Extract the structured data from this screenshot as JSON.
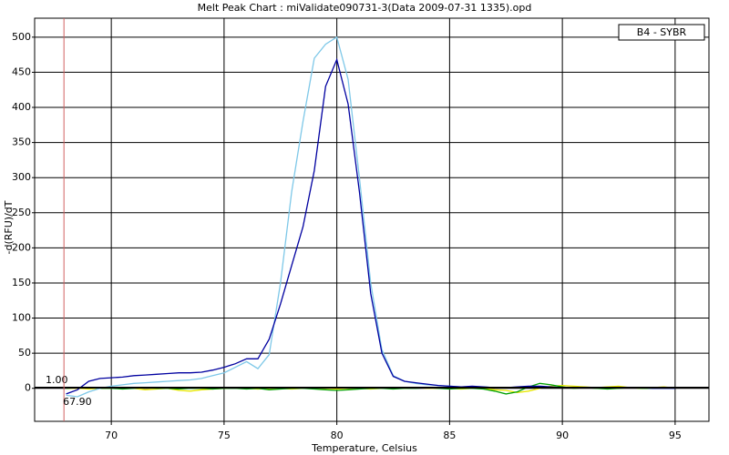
{
  "chart_data": {
    "type": "line",
    "title": "Melt Peak Chart : miValidate090731-3(Data 2009-07-31 1335).opd",
    "x_label": "Temperature, Celsius",
    "y_label": "-d(RFU)/dT",
    "x": [
      68,
      68.5,
      69,
      69.5,
      70,
      70.5,
      71,
      71.5,
      72,
      72.5,
      73,
      73.5,
      74,
      74.5,
      75,
      75.5,
      76,
      76.5,
      77,
      77.5,
      78,
      78.5,
      79,
      79.5,
      80,
      80.5,
      81,
      81.5,
      82,
      82.5,
      83,
      83.5,
      84,
      84.5,
      85,
      85.5,
      86,
      86.5,
      87,
      87.5,
      88,
      88.5,
      89,
      89.5,
      90,
      90.5,
      91,
      91.5,
      92,
      92.5,
      93,
      93.5,
      94,
      94.5,
      95
    ],
    "series": [
      {
        "name": "B4 - SYBR",
        "color": "#0000a0",
        "values": [
          -8,
          -2,
          10,
          14,
          15,
          16,
          18,
          19,
          20,
          21,
          22,
          22,
          23,
          26,
          30,
          35,
          42,
          42,
          70,
          120,
          175,
          230,
          310,
          430,
          468,
          405,
          280,
          135,
          50,
          17,
          10,
          8,
          6,
          4,
          3,
          2,
          3,
          2,
          1,
          1,
          2,
          3,
          3,
          2,
          1,
          1,
          1,
          1,
          1,
          1,
          1,
          1,
          0,
          0,
          0
        ]
      },
      {
        "color": "#7ec8e8",
        "values": [
          -10,
          -12,
          -5,
          0,
          3,
          5,
          7,
          8,
          9,
          10,
          11,
          12,
          14,
          18,
          22,
          30,
          38,
          28,
          48,
          150,
          280,
          380,
          470,
          490,
          500,
          440,
          300,
          150,
          55,
          18,
          10,
          7,
          5,
          4,
          3,
          2,
          2,
          2,
          1,
          1,
          1,
          2,
          2,
          2,
          1,
          1,
          1,
          1,
          1,
          1,
          1,
          1,
          0,
          0,
          0
        ]
      },
      {
        "color": "#00a000",
        "values": [
          0,
          1,
          1,
          0,
          0,
          -1,
          0,
          1,
          0,
          0,
          -1,
          0,
          0,
          -1,
          0,
          0,
          -1,
          0,
          -2,
          -1,
          0,
          0,
          -1,
          -2,
          -3,
          -2,
          -1,
          0,
          0,
          -1,
          0,
          0,
          1,
          0,
          -1,
          0,
          0,
          -1,
          -4,
          -8,
          -5,
          2,
          7,
          5,
          2,
          0,
          1,
          0,
          -1,
          0,
          1,
          0,
          0,
          0,
          0
        ]
      },
      {
        "color": "#e8e800",
        "values": [
          0,
          0,
          -1,
          0,
          0,
          1,
          0,
          -2,
          -1,
          0,
          -3,
          -4,
          -2,
          -1,
          0,
          1,
          0,
          -1,
          0,
          0,
          -1,
          0,
          0,
          0,
          -1,
          0,
          0,
          -1,
          0,
          0,
          0,
          1,
          0,
          0,
          0,
          -1,
          0,
          0,
          -2,
          -3,
          -6,
          -4,
          0,
          3,
          4,
          3,
          2,
          1,
          2,
          3,
          1,
          0,
          1,
          2,
          0
        ]
      }
    ],
    "xlim": [
      66.6,
      96.5
    ],
    "ylim": [
      -47,
      527
    ],
    "xticks": [
      70,
      75,
      80,
      85,
      90,
      95
    ],
    "yticks": [
      0,
      50,
      100,
      150,
      200,
      250,
      300,
      350,
      400,
      450,
      500
    ],
    "grid": true,
    "threshold": {
      "value": 1,
      "label": "1.00"
    },
    "marker": {
      "value": 67.9,
      "label": "67.90"
    },
    "legend": "upper right"
  }
}
